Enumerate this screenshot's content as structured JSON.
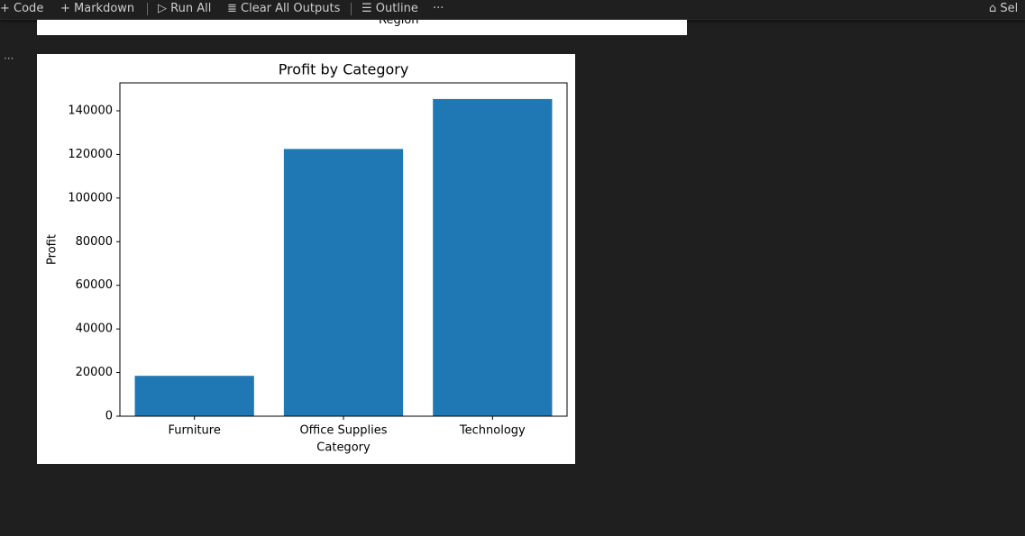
{
  "toolbar": {
    "items": [
      "Code",
      "Markdown",
      "Run All",
      "Clear All Outputs",
      "Outline"
    ],
    "more": "···",
    "kernel": "Sel"
  },
  "previous_output": {
    "x_label": "Region"
  },
  "cell_menu": "···",
  "chart_data": {
    "type": "bar",
    "title": "Profit by Category",
    "x_label": "Category",
    "y_label": "Profit",
    "categories": [
      "Furniture",
      "Office Supplies",
      "Technology"
    ],
    "values": [
      18500,
      122500,
      145400
    ],
    "color": "#1f77b4",
    "ylim": [
      0,
      152800
    ],
    "yticks": [
      0,
      20000,
      40000,
      60000,
      80000,
      100000,
      120000,
      140000
    ],
    "grid": false
  }
}
